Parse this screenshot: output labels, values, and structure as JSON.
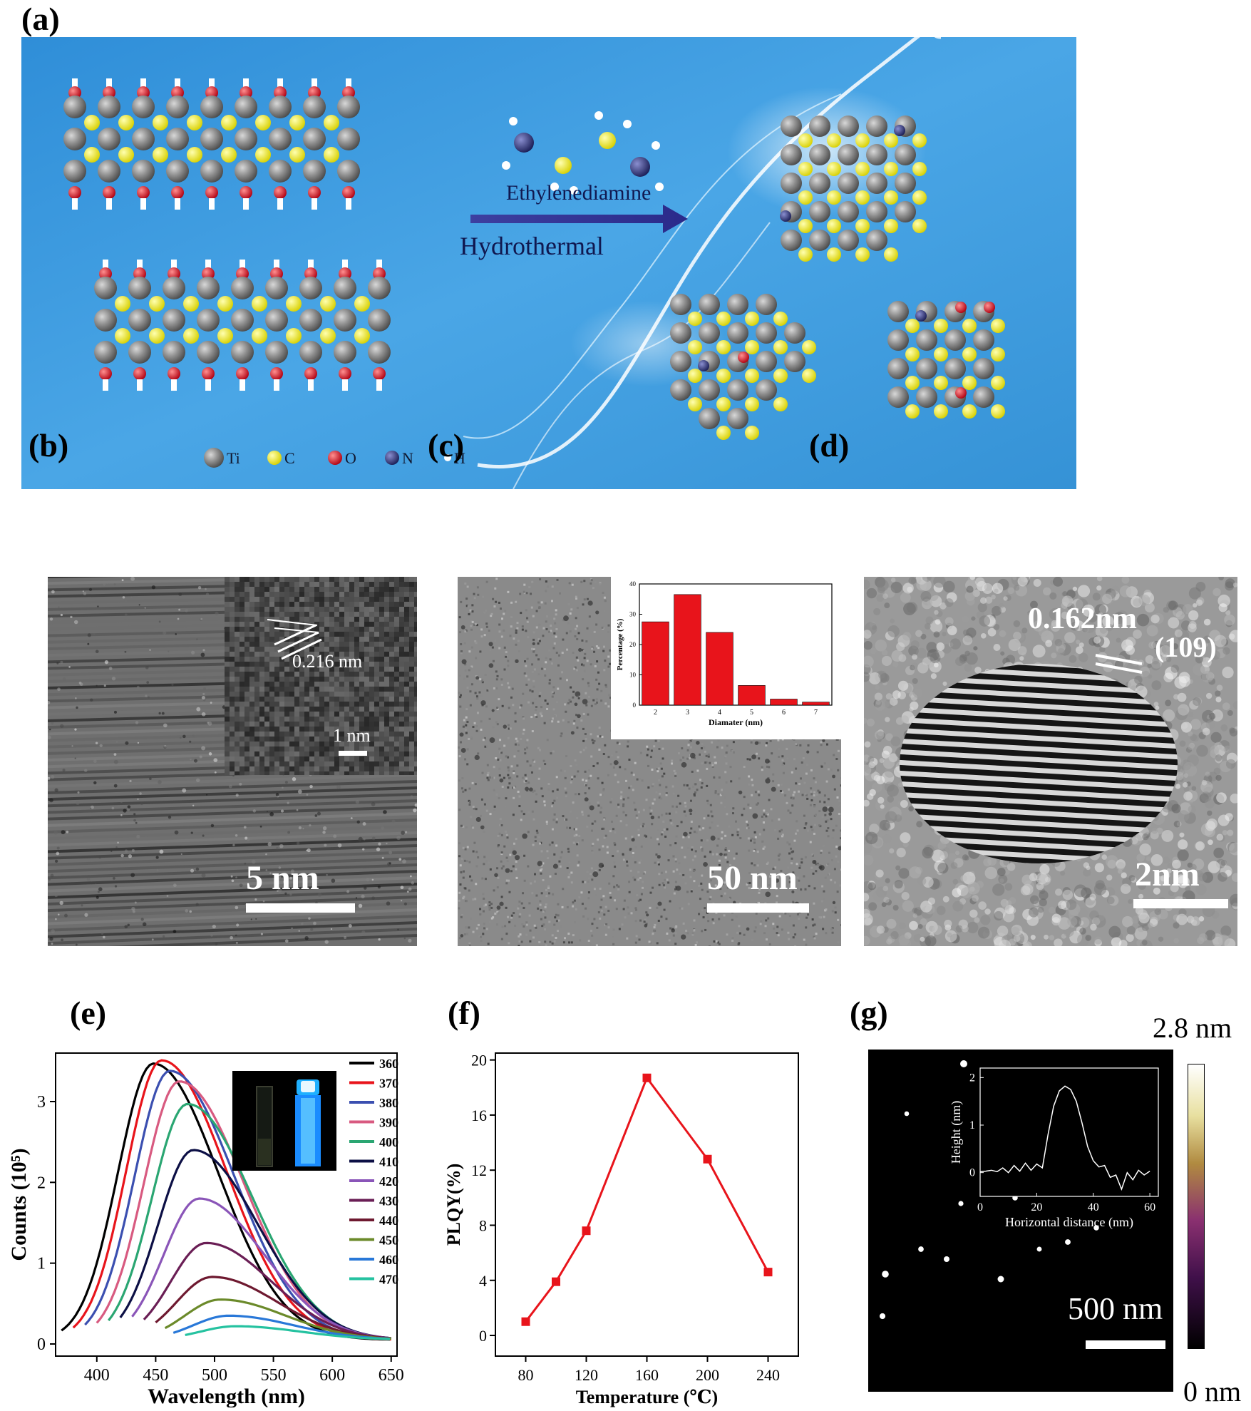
{
  "panels": {
    "a": {
      "label": "(a)",
      "reagent": "Ethylenediamine",
      "process": "Hydrothermal",
      "legend": [
        {
          "symbol": "Ti",
          "color": "#8a8a8a"
        },
        {
          "symbol": "C",
          "color": "#f2f21a"
        },
        {
          "symbol": "O",
          "color": "#e02020"
        },
        {
          "symbol": "N",
          "color": "#2c2f7a"
        },
        {
          "symbol": "H",
          "color": "#ffffff"
        }
      ]
    },
    "b": {
      "label": "(b)",
      "inset_spacing": "0.216 nm",
      "inset_scale": "1 nm",
      "scale": "5 nm"
    },
    "c": {
      "label": "(c)",
      "scale": "50 nm"
    },
    "d": {
      "label": "(d)",
      "spacing": "0.162nm",
      "plane": "(109)",
      "scale": "2nm"
    },
    "e": {
      "label": "(e)"
    },
    "f": {
      "label": "(f)"
    },
    "g": {
      "label": "(g)",
      "scale": "500 nm",
      "colorbar_max": "2.8 nm",
      "colorbar_min": "0 nm"
    }
  },
  "chart_data": [
    {
      "panel": "c-inset",
      "type": "bar",
      "categories": [
        "2",
        "3",
        "4",
        "5",
        "6",
        "7"
      ],
      "values": [
        27.5,
        36.5,
        24,
        6.5,
        2,
        1
      ],
      "xlabel": "Diamater (nm)",
      "ylabel": "Percentage (%)",
      "ylim": [
        0,
        40
      ],
      "yticks": [
        "0",
        "10",
        "20",
        "30",
        "40"
      ],
      "color": "#e8141b"
    },
    {
      "panel": "e",
      "type": "line",
      "xlabel": "Wavelength (nm)",
      "ylabel": "Counts (10⁵)",
      "xlim": [
        365,
        655
      ],
      "ylim": [
        -0.15,
        3.6
      ],
      "xticks": [
        400,
        450,
        500,
        550,
        600,
        650
      ],
      "yticks": [
        0,
        1,
        2,
        3
      ],
      "legend_position": "right",
      "series": [
        {
          "name": "360",
          "color": "#000000",
          "start": 370,
          "peak_x": 448,
          "peak_y": 3.42
        },
        {
          "name": "370",
          "color": "#e8141b",
          "start": 380,
          "peak_x": 455,
          "peak_y": 3.46
        },
        {
          "name": "380",
          "color": "#3b4fb0",
          "start": 390,
          "peak_x": 462,
          "peak_y": 3.33
        },
        {
          "name": "390",
          "color": "#d85a80",
          "start": 400,
          "peak_x": 470,
          "peak_y": 3.2
        },
        {
          "name": "400",
          "color": "#2aa672",
          "start": 410,
          "peak_x": 477,
          "peak_y": 2.92
        },
        {
          "name": "410",
          "color": "#0c0f45",
          "start": 420,
          "peak_x": 482,
          "peak_y": 2.35
        },
        {
          "name": "420",
          "color": "#8a55b8",
          "start": 430,
          "peak_x": 487,
          "peak_y": 1.75
        },
        {
          "name": "430",
          "color": "#6a1e55",
          "start": 440,
          "peak_x": 493,
          "peak_y": 1.2
        },
        {
          "name": "440",
          "color": "#6e1930",
          "start": 450,
          "peak_x": 498,
          "peak_y": 0.78
        },
        {
          "name": "450",
          "color": "#6b8a2a",
          "start": 458,
          "peak_x": 505,
          "peak_y": 0.5
        },
        {
          "name": "460",
          "color": "#2978d8",
          "start": 465,
          "peak_x": 512,
          "peak_y": 0.3
        },
        {
          "name": "470",
          "color": "#25c2a0",
          "start": 475,
          "peak_x": 518,
          "peak_y": 0.17
        }
      ]
    },
    {
      "panel": "f",
      "type": "line",
      "xlabel": "Temperature (℃)",
      "ylabel": "PLQY(%)",
      "xlim": [
        60,
        260
      ],
      "ylim": [
        -1.5,
        20.5
      ],
      "xticks": [
        80,
        120,
        160,
        200,
        240
      ],
      "yticks": [
        0,
        4,
        8,
        12,
        16,
        20
      ],
      "series": [
        {
          "color": "#e8141b",
          "x": [
            80,
            100,
            120,
            160,
            200,
            240
          ],
          "y": [
            1.0,
            3.9,
            7.6,
            18.7,
            12.8,
            4.6
          ]
        }
      ]
    },
    {
      "panel": "g-inset",
      "type": "line",
      "xlabel": "Horizontal distance (nm)",
      "ylabel": "Height (nm)",
      "xlim": [
        0,
        63
      ],
      "ylim": [
        -0.5,
        2.2
      ],
      "xticks": [
        0,
        20,
        40,
        60
      ],
      "yticks": [
        0,
        1,
        2
      ],
      "series": [
        {
          "color": "#ffffff",
          "x": [
            0,
            2,
            4,
            6,
            8,
            10,
            12,
            14,
            16,
            18,
            20,
            22,
            24,
            26,
            28,
            30,
            32,
            34,
            36,
            38,
            40,
            42,
            44,
            46,
            48,
            50,
            52,
            54,
            56,
            58,
            60
          ],
          "y": [
            0.02,
            0.03,
            0.05,
            0.02,
            0.1,
            0.0,
            0.15,
            0.03,
            0.2,
            0.05,
            0.18,
            0.1,
            0.8,
            1.4,
            1.72,
            1.82,
            1.75,
            1.5,
            1.05,
            0.55,
            0.25,
            0.12,
            0.15,
            -0.1,
            -0.05,
            -0.35,
            0.0,
            -0.15,
            0.05,
            -0.05,
            0.03
          ]
        }
      ]
    }
  ]
}
